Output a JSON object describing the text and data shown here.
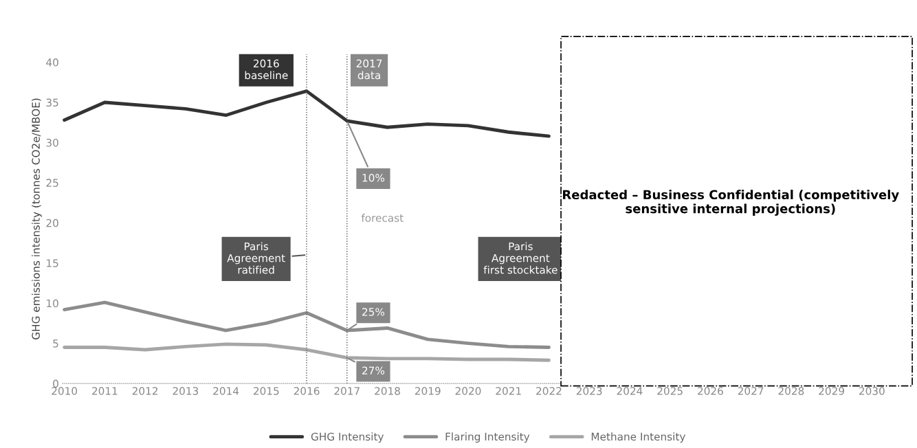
{
  "chart_data": {
    "type": "line",
    "ylabel": "GHG emissions intensity (tonnes CO2e/MBOE)",
    "categories": [
      "2010",
      "2011",
      "2012",
      "2013",
      "2014",
      "2015",
      "2016",
      "2017",
      "2018",
      "2019",
      "2020",
      "2021",
      "2022",
      "2023",
      "2024",
      "2025",
      "2026",
      "2027",
      "2028",
      "2029",
      "2030"
    ],
    "series": [
      {
        "name": "GHG Intensity",
        "color": "#333333",
        "values": [
          32.8,
          35.0,
          34.6,
          34.2,
          33.4,
          35.0,
          36.4,
          32.7,
          31.9,
          32.3,
          32.1,
          31.3,
          30.8,
          null,
          null,
          null,
          null,
          null,
          null,
          null,
          null
        ]
      },
      {
        "name": "Flaring Intensity",
        "color": "#8c8c8c",
        "values": [
          9.2,
          10.1,
          8.9,
          7.7,
          6.6,
          7.5,
          8.8,
          6.6,
          6.9,
          5.5,
          5.0,
          4.6,
          4.5,
          null,
          null,
          null,
          null,
          null,
          null,
          null,
          null
        ]
      },
      {
        "name": "Methane Intensity",
        "color": "#a6a6a6",
        "values": [
          4.5,
          4.5,
          4.2,
          4.6,
          4.9,
          4.8,
          4.2,
          3.2,
          3.1,
          3.1,
          3.0,
          3.0,
          2.9,
          null,
          null,
          null,
          null,
          null,
          null,
          null,
          null
        ]
      }
    ],
    "ylim": [
      0,
      41
    ],
    "yticks": [
      0,
      5,
      10,
      15,
      20,
      25,
      30,
      35,
      40
    ],
    "ref_lines": [
      {
        "axis": "x",
        "value": "2016",
        "line_style": "dotted",
        "color": "#555555"
      },
      {
        "axis": "x",
        "value": "2017",
        "line_style": "dotted",
        "color": "#555555"
      }
    ],
    "annotations": [
      {
        "text": "10%",
        "x": "2017",
        "y": 32.7
      },
      {
        "text": "25%",
        "x": "2017",
        "y": 6.6
      },
      {
        "text": "27%",
        "x": "2017",
        "y": 3.2
      },
      {
        "text": "Paris\nAgreement\nratified",
        "x": "2016",
        "y": 16
      },
      "2016\nbaseline",
      "2017\ndata",
      "forecast",
      "Paris\nAgreement\nfirst stocktake",
      "Redacted – Business Confidential (competitively\nsensitive internal projections)"
    ],
    "legend": "bottom",
    "grid": false,
    "marker": "none",
    "line_style": "solid"
  }
}
